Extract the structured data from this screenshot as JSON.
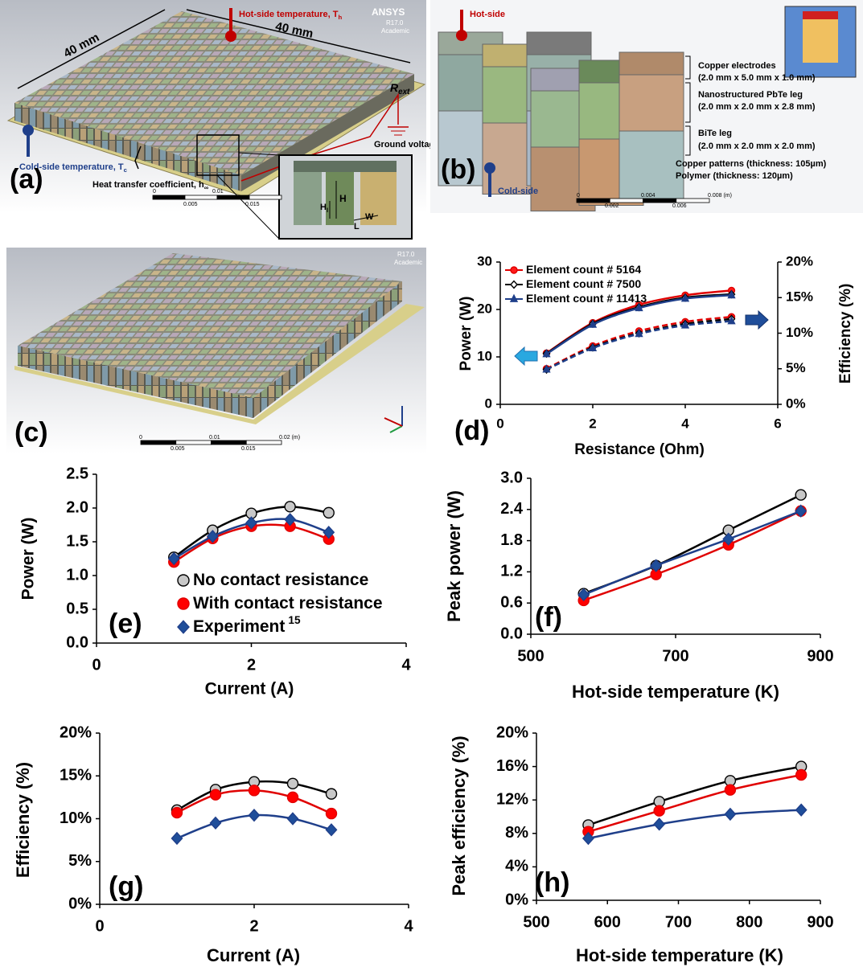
{
  "panel_a": {
    "label": "(a)",
    "dim_1": "40 mm",
    "dim_2": "40 mm",
    "hot_side": {
      "text": "Hot-side temperature, T",
      "sub": "h"
    },
    "software": "ANSYS",
    "version": "R17.0",
    "license": "Academic",
    "resistor": {
      "text": "R",
      "sub": "ext"
    },
    "ground": "Ground voltage",
    "cold_side": {
      "text": "Cold-side temperature, T",
      "sub": "c"
    },
    "heat_transfer": {
      "text": "Heat transfer coefficient, h",
      "sub": "∞"
    },
    "scale": [
      "0",
      "0.01",
      "0.005",
      "0.015"
    ],
    "inset": {
      "height": "H",
      "leg_height": {
        "text": "H",
        "sub": "l"
      },
      "length": "L",
      "width": "W"
    }
  },
  "panel_b": {
    "label": "(b)",
    "hot_side": "Hot-side",
    "cold_side": "Cold-side",
    "electrodes": "Copper electrodes",
    "electrodes_size": "(2.0 mm x 5.0 mm x 1.0 mm)",
    "pbte": "Nanostructured PbTe leg",
    "pbte_size": "(2.0 mm x 2.0 mm x 2.8 mm)",
    "bite": "BiTe leg",
    "bite_size": "(2.0 mm x 2.0 mm x 2.0 mm)",
    "copper_patterns": "Copper patterns (thickness: 105µm)",
    "polymer": "Polymer (thickness: 120µm)",
    "scale": [
      "0",
      "0.004",
      "0.008 (m)",
      "0.002",
      "0.006"
    ]
  },
  "panel_c": {
    "label": "(c)",
    "version": "R17.0",
    "license": "Academic",
    "scale": [
      "0",
      "0.01",
      "0.02 (m)",
      "0.005",
      "0.015"
    ]
  },
  "chart_data": [
    {
      "type": "line",
      "panel_label": "(d)",
      "xlabel": "Resistance (Ohm)",
      "ylabel": "Power (W)",
      "y2label": "Efficiency (%)",
      "x": [
        1,
        2,
        3,
        4,
        5
      ],
      "xlim": [
        0,
        6
      ],
      "xticks": [
        0,
        2,
        4,
        6
      ],
      "ylim": [
        0,
        30
      ],
      "yticks": [
        0,
        10,
        20,
        30
      ],
      "y2lim": [
        0,
        20
      ],
      "y2ticks": [
        {
          "value": 0,
          "label": "0%"
        },
        {
          "value": 5,
          "label": "5%"
        },
        {
          "value": 10,
          "label": "10%"
        },
        {
          "value": 15,
          "label": "15%"
        },
        {
          "value": 20,
          "label": "20%"
        }
      ],
      "legend": "upper left",
      "series": [
        {
          "name": "Element count # 5164",
          "marker": "circle",
          "color": "#ff1a1a",
          "line_color": "#e00000",
          "values": [
            10.8,
            17.2,
            21,
            23,
            24
          ],
          "y2_values": [
            5,
            8.2,
            10.3,
            11.6,
            12.3
          ]
        },
        {
          "name": "Element count # 7500",
          "marker": "diamond",
          "color": "#ffffff",
          "line_color": "#000000",
          "values": [
            10.7,
            17,
            20.5,
            22.5,
            23.2
          ],
          "y2_values": [
            4.9,
            8,
            10,
            11.3,
            12
          ]
        },
        {
          "name": "Element count # 11413",
          "marker": "triangle",
          "color": "#1f3f8a",
          "line_color": "#1f3f8a",
          "values": [
            10.6,
            16.8,
            20.3,
            22.3,
            23
          ],
          "y2_values": [
            4.9,
            7.9,
            9.9,
            11.1,
            11.7
          ]
        }
      ]
    },
    {
      "type": "line",
      "panel_label": "(e)",
      "xlabel": "Current (A)",
      "ylabel": "Power (W)",
      "x": [
        1,
        1.5,
        2,
        2.5,
        3
      ],
      "xlim": [
        0,
        4
      ],
      "xticks": [
        0,
        2,
        4
      ],
      "ylim": [
        0,
        2.5
      ],
      "yticks": [
        {
          "value": 0,
          "label": "0.0"
        },
        0.5,
        {
          "value": 1,
          "label": "1.0"
        },
        1.5,
        {
          "value": 2,
          "label": "2.0"
        },
        2.5
      ],
      "legend": "lower left",
      "series": [
        {
          "name": "No contact resistance",
          "marker": "circle",
          "color": "#c8c8c8",
          "line_color": "#000000",
          "values": [
            1.27,
            1.67,
            1.92,
            2.02,
            1.93
          ]
        },
        {
          "name": "With contact resistance",
          "marker": "circle",
          "color": "#ff0000",
          "line_color": "#e00000",
          "values": [
            1.2,
            1.55,
            1.73,
            1.73,
            1.54
          ]
        },
        {
          "name": "Experiment",
          "reference": "15",
          "marker": "diamond",
          "color": "#1f4e9a",
          "line_color": "#1f3f8a",
          "values": [
            1.25,
            1.58,
            1.78,
            1.83,
            1.64
          ]
        }
      ]
    },
    {
      "type": "line",
      "panel_label": "(f)",
      "xlabel": "Hot-side temperature (K)",
      "ylabel": "Peak power (W)",
      "x": [
        573,
        673,
        773,
        873
      ],
      "xlim": [
        500,
        900
      ],
      "xticks": [
        500,
        700,
        900
      ],
      "ylim": [
        0,
        3
      ],
      "yticks": [
        {
          "value": 0,
          "label": "0.0"
        },
        0.6,
        1.2,
        1.8,
        2.4,
        {
          "value": 3,
          "label": "3.0"
        }
      ],
      "series": [
        {
          "marker": "circle",
          "color": "#c8c8c8",
          "line_color": "#000000",
          "values": [
            0.78,
            1.32,
            2.0,
            2.68
          ]
        },
        {
          "marker": "circle",
          "color": "#ff0000",
          "line_color": "#e00000",
          "values": [
            0.65,
            1.15,
            1.72,
            2.37
          ]
        },
        {
          "marker": "diamond",
          "color": "#1f4e9a",
          "line_color": "#1f3f8a",
          "values": [
            0.76,
            1.32,
            1.83,
            2.37
          ]
        }
      ]
    },
    {
      "type": "line",
      "panel_label": "(g)",
      "xlabel": "Current (A)",
      "ylabel": "Efficiency (%)",
      "x": [
        1,
        1.5,
        2,
        2.5,
        3
      ],
      "xlim": [
        0,
        4
      ],
      "xticks": [
        0,
        2,
        4
      ],
      "ylim": [
        0,
        20
      ],
      "yticks": [
        {
          "value": 0,
          "label": "0%"
        },
        {
          "value": 5,
          "label": "5%"
        },
        {
          "value": 10,
          "label": "10%"
        },
        {
          "value": 15,
          "label": "15%"
        },
        {
          "value": 20,
          "label": "20%"
        }
      ],
      "series": [
        {
          "marker": "circle",
          "color": "#c8c8c8",
          "line_color": "#000000",
          "values": [
            11,
            13.4,
            14.3,
            14.1,
            12.9
          ]
        },
        {
          "marker": "circle",
          "color": "#ff0000",
          "line_color": "#e00000",
          "values": [
            10.7,
            12.8,
            13.3,
            12.5,
            10.6
          ]
        },
        {
          "marker": "diamond",
          "color": "#1f4e9a",
          "line_color": "#1f3f8a",
          "values": [
            7.7,
            9.5,
            10.4,
            10,
            8.7
          ]
        }
      ]
    },
    {
      "type": "line",
      "panel_label": "(h)",
      "xlabel": "Hot-side temperature (K)",
      "ylabel": "Peak efficiency (%)",
      "x": [
        573,
        673,
        773,
        873
      ],
      "xlim": [
        500,
        900
      ],
      "xticks": [
        500,
        600,
        700,
        800,
        900
      ],
      "ylim": [
        0,
        20
      ],
      "yticks": [
        {
          "value": 0,
          "label": "0%"
        },
        {
          "value": 4,
          "label": "4%"
        },
        {
          "value": 8,
          "label": "8%"
        },
        {
          "value": 12,
          "label": "12%"
        },
        {
          "value": 16,
          "label": "16%"
        },
        {
          "value": 20,
          "label": "20%"
        }
      ],
      "series": [
        {
          "marker": "circle",
          "color": "#c8c8c8",
          "line_color": "#000000",
          "values": [
            9,
            11.8,
            14.3,
            16
          ]
        },
        {
          "marker": "circle",
          "color": "#ff0000",
          "line_color": "#e00000",
          "values": [
            8.2,
            10.7,
            13.2,
            15
          ]
        },
        {
          "marker": "diamond",
          "color": "#1f4e9a",
          "line_color": "#1f3f8a",
          "values": [
            7.4,
            9.1,
            10.3,
            10.8
          ]
        }
      ]
    }
  ]
}
